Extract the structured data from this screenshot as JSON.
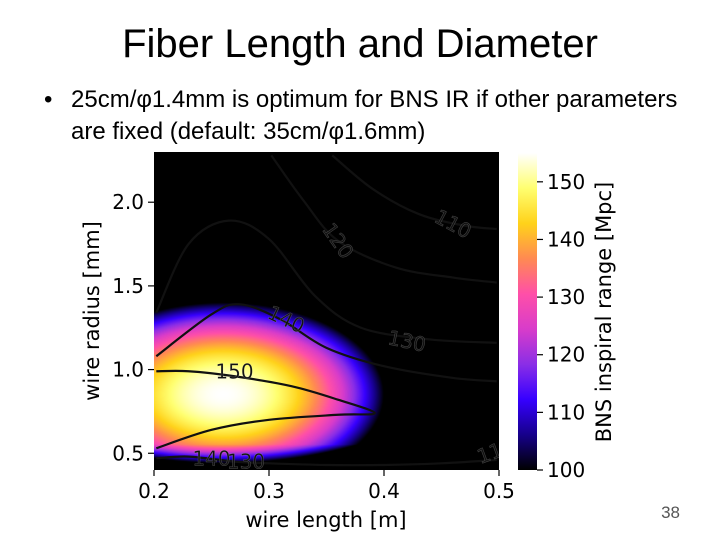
{
  "slide": {
    "title": "Fiber Length and Diameter",
    "bullet_marker": "•",
    "bullet_text": "25cm/φ1.4mm is optimum for BNS IR if other parameters are fixed (default: 35cm/φ1.6mm)",
    "page_number": "38"
  },
  "chart_data": {
    "type": "heatmap",
    "title": "",
    "xlabel": "wire length [m]",
    "ylabel": "wire radius [mm]",
    "xlim": [
      0.2,
      0.5
    ],
    "ylim": [
      0.4,
      2.3
    ],
    "xticks": [
      0.2,
      0.3,
      0.4,
      0.5
    ],
    "yticks": [
      0.5,
      1.0,
      1.5,
      2.0
    ],
    "xtick_labels": [
      "0.2",
      "0.3",
      "0.4",
      "0.5"
    ],
    "ytick_labels": [
      "0.5",
      "1.0",
      "1.5",
      "2.0"
    ],
    "colorbar": {
      "label": "BNS inspiral range [Mpc]",
      "min": 100,
      "max": 155,
      "ticks": [
        100,
        110,
        120,
        130,
        140,
        150
      ],
      "tick_labels": [
        "100",
        "110",
        "120",
        "130",
        "140",
        "150"
      ],
      "colors": [
        "#000000",
        "#16008a",
        "#3600ff",
        "#8a2ee6",
        "#d83cca",
        "#ff4fa8",
        "#ff8a52",
        "#ffd21a",
        "#ffff70",
        "#ffffff"
      ]
    },
    "contour_levels": [
      110,
      120,
      130,
      140,
      150
    ],
    "contours": [
      {
        "level": 150,
        "points": [
          [
            0.202,
            0.53
          ],
          [
            0.25,
            0.64
          ],
          [
            0.3,
            0.7
          ],
          [
            0.36,
            0.73
          ],
          [
            0.392,
            0.74
          ],
          [
            0.36,
            0.82
          ],
          [
            0.32,
            0.9
          ],
          [
            0.27,
            0.96
          ],
          [
            0.23,
            0.99
          ],
          [
            0.202,
            0.99
          ]
        ]
      },
      {
        "level": 140,
        "points": [
          [
            0.202,
            1.08
          ],
          [
            0.25,
            1.33
          ],
          [
            0.275,
            1.39
          ],
          [
            0.31,
            1.3
          ],
          [
            0.35,
            1.13
          ],
          [
            0.4,
            1.02
          ],
          [
            0.46,
            0.95
          ],
          [
            0.498,
            0.93
          ]
        ]
      },
      {
        "level": 130,
        "points": [
          [
            0.202,
            1.34
          ],
          [
            0.23,
            1.75
          ],
          [
            0.265,
            1.89
          ],
          [
            0.3,
            1.78
          ],
          [
            0.34,
            1.44
          ],
          [
            0.38,
            1.25
          ],
          [
            0.44,
            1.18
          ],
          [
            0.498,
            1.16
          ]
        ]
      },
      {
        "level": 120,
        "points": [
          [
            0.302,
            2.28
          ],
          [
            0.33,
            2.01
          ],
          [
            0.36,
            1.77
          ],
          [
            0.41,
            1.61
          ],
          [
            0.46,
            1.55
          ],
          [
            0.498,
            1.52
          ]
        ]
      },
      {
        "level": 110,
        "points": [
          [
            0.355,
            2.28
          ],
          [
            0.39,
            2.08
          ],
          [
            0.43,
            1.93
          ],
          [
            0.47,
            1.86
          ],
          [
            0.498,
            1.84
          ]
        ]
      },
      {
        "level": 140,
        "points": [
          [
            0.202,
            0.47
          ],
          [
            0.23,
            0.48
          ],
          [
            0.27,
            0.45
          ],
          [
            0.3,
            0.44
          ],
          [
            0.35,
            0.43
          ],
          [
            0.4,
            0.43
          ],
          [
            0.45,
            0.44
          ],
          [
            0.498,
            0.46
          ]
        ]
      }
    ],
    "contour_labels": [
      {
        "text": "150",
        "x": 0.27,
        "y": 0.99,
        "angle": 0
      },
      {
        "text": "140",
        "x": 0.315,
        "y": 1.3,
        "angle": 25
      },
      {
        "text": "130",
        "x": 0.42,
        "y": 1.17,
        "angle": 12
      },
      {
        "text": "120",
        "x": 0.36,
        "y": 1.77,
        "angle": 55
      },
      {
        "text": "110",
        "x": 0.46,
        "y": 1.87,
        "angle": 28
      },
      {
        "text": "140",
        "x": 0.25,
        "y": 0.47,
        "angle": 0
      },
      {
        "text": "130",
        "x": 0.28,
        "y": 0.45,
        "angle": 0
      },
      {
        "text": "11",
        "x": 0.492,
        "y": 0.5,
        "angle": -20
      }
    ],
    "heat": {
      "peak": {
        "x": 0.26,
        "y": 0.85,
        "value": 155
      },
      "xscale": 0.14,
      "yscale": 0.55,
      "floor": 99
    }
  }
}
